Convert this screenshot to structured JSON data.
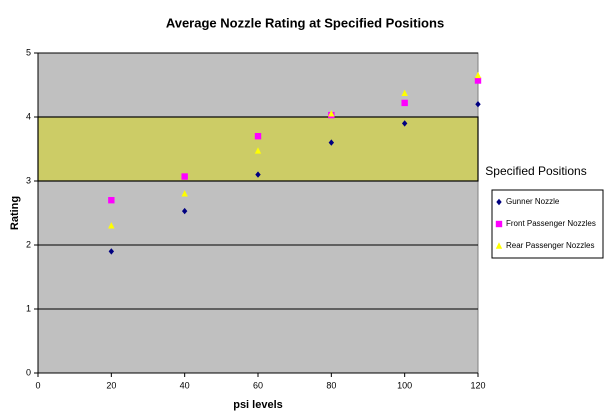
{
  "chart_data": {
    "type": "scatter",
    "title": "Average Nozzle Rating at Specified Positions",
    "x_label": "psi levels",
    "y_label": "Rating",
    "x": [
      20,
      40,
      60,
      80,
      100,
      120
    ],
    "series": [
      {
        "name": "Gunner Nozzle",
        "color": "#000080",
        "marker": "diamond",
        "values": [
          1.9,
          2.53,
          3.1,
          3.6,
          3.9,
          4.2
        ]
      },
      {
        "name": "Front Passenger Nozzles",
        "color": "#ff00ff",
        "marker": "square",
        "values": [
          2.7,
          3.07,
          3.7,
          4.03,
          4.22,
          4.57
        ]
      },
      {
        "name": "Rear Passenger Nozzles",
        "color": "#ffff00",
        "marker": "triangle",
        "values": [
          2.3,
          2.8,
          3.47,
          4.05,
          4.37,
          4.65
        ]
      }
    ],
    "xlim": [
      0,
      120
    ],
    "xticks": [
      0,
      20,
      40,
      60,
      80,
      100,
      120
    ],
    "ylim": [
      0,
      5
    ],
    "yticks": [
      0,
      1,
      2,
      3,
      4,
      5
    ],
    "grid": true,
    "plot_background": "#c0c0c0",
    "band": [
      3,
      4
    ],
    "band_color": "#cccc66",
    "legend_title": "Specified Positions",
    "legend_position": "right"
  }
}
